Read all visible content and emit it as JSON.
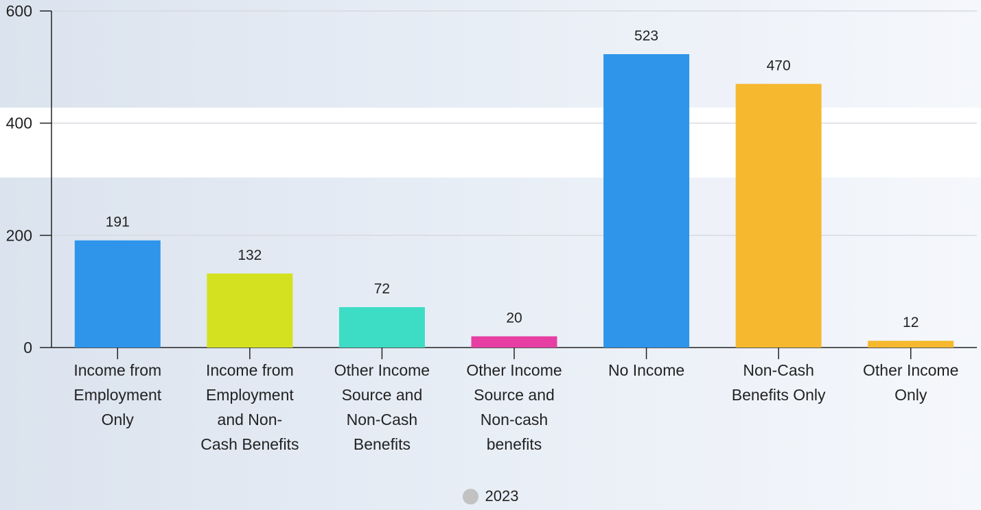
{
  "chart_data": {
    "type": "bar",
    "categories": [
      "Income from Employment Only",
      "Income from Employment and Non-Cash Benefits",
      "Other Income Source and Non-Cash Benefits",
      "Other Income Source and Non-cash benefits",
      "No Income",
      "Non-Cash Benefits Only",
      "Other Income Only"
    ],
    "category_label_lines": [
      [
        "Income from",
        "Employment",
        "Only"
      ],
      [
        "Income from",
        "Employment",
        "and Non-",
        "Cash Benefits"
      ],
      [
        "Other Income",
        "Source and",
        "Non-Cash",
        "Benefits"
      ],
      [
        "Other Income",
        "Source and",
        "Non-cash",
        "benefits"
      ],
      [
        "No Income"
      ],
      [
        "Non-Cash",
        "Benefits Only"
      ],
      [
        "Other Income",
        "Only"
      ]
    ],
    "series": [
      {
        "name": "2023",
        "values": [
          191,
          132,
          72,
          20,
          523,
          470,
          12
        ]
      }
    ],
    "bar_colors": [
      "#2e95ea",
      "#d4e120",
      "#3ddcc4",
      "#e63ea2",
      "#2e95ea",
      "#f5b82e",
      "#f5b82e"
    ],
    "legend_color": "#c2c2c2",
    "yticks": [
      0,
      200,
      400,
      600
    ],
    "ylim": [
      0,
      600
    ],
    "grid": true,
    "legend_position": "bottom-center",
    "title": "",
    "xlabel": "",
    "ylabel": ""
  }
}
